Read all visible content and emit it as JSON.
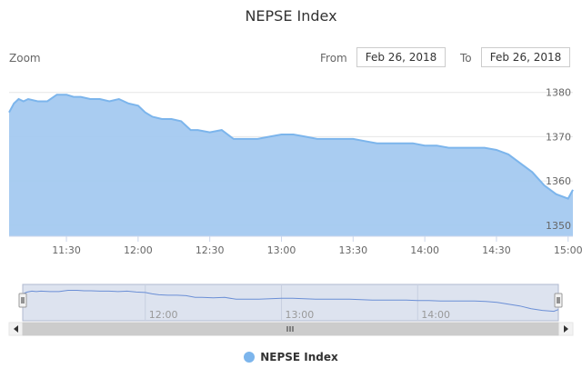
{
  "title": "NEPSE Index",
  "range_selector": {
    "zoom_label": "Zoom",
    "from_label": "From",
    "from_value": "Feb 26, 2018",
    "to_label": "To",
    "to_value": "Feb 26, 2018"
  },
  "colors": {
    "series_line": "#7cb5ec",
    "series_fill": "#a4c9f0",
    "navigator_fill": "#dde3ef",
    "navigator_line": "#6b8fd6"
  },
  "chart_data": {
    "type": "area",
    "title": "NEPSE Index",
    "xlabel": "",
    "ylabel": "",
    "x_ticks": [
      "11:30",
      "12:00",
      "12:30",
      "13:00",
      "13:30",
      "14:00",
      "14:30",
      "15:00"
    ],
    "y_ticks": [
      1350,
      1360,
      1370,
      1380
    ],
    "xlim": [
      "11:06",
      "15:02"
    ],
    "ylim": [
      1347.5,
      1382
    ],
    "grid": true,
    "legend_placement": "bottom-center",
    "navigator_ticks": [
      "12:00",
      "13:00",
      "14:00"
    ],
    "series": [
      {
        "name": "NEPSE Index",
        "x": [
          "11:06",
          "11:08",
          "11:10",
          "11:12",
          "11:14",
          "11:18",
          "11:22",
          "11:26",
          "11:30",
          "11:33",
          "11:36",
          "11:40",
          "11:44",
          "11:48",
          "11:52",
          "11:56",
          "12:00",
          "12:03",
          "12:06",
          "12:10",
          "12:14",
          "12:18",
          "12:22",
          "12:25",
          "12:30",
          "12:35",
          "12:40",
          "12:45",
          "12:50",
          "12:55",
          "13:00",
          "13:05",
          "13:10",
          "13:15",
          "13:20",
          "13:25",
          "13:30",
          "13:35",
          "13:40",
          "13:45",
          "13:50",
          "13:55",
          "14:00",
          "14:05",
          "14:10",
          "14:15",
          "14:20",
          "14:25",
          "14:30",
          "14:35",
          "14:40",
          "14:45",
          "14:50",
          "14:55",
          "15:00",
          "15:02"
        ],
        "values": [
          1375.5,
          1377.5,
          1378.5,
          1378,
          1378.5,
          1378,
          1378,
          1379.5,
          1379.5,
          1379,
          1379,
          1378.5,
          1378.5,
          1378,
          1378.5,
          1377.5,
          1377,
          1375.5,
          1374.5,
          1374,
          1374,
          1373.5,
          1371.5,
          1371.5,
          1371,
          1371.5,
          1369.5,
          1369.5,
          1369.5,
          1370,
          1370.5,
          1370.5,
          1370,
          1369.5,
          1369.5,
          1369.5,
          1369.5,
          1369,
          1368.5,
          1368.5,
          1368.5,
          1368.5,
          1368,
          1368,
          1367.5,
          1367.5,
          1367.5,
          1367.5,
          1367,
          1366,
          1364,
          1362,
          1359,
          1357,
          1356,
          1358
        ]
      }
    ]
  }
}
